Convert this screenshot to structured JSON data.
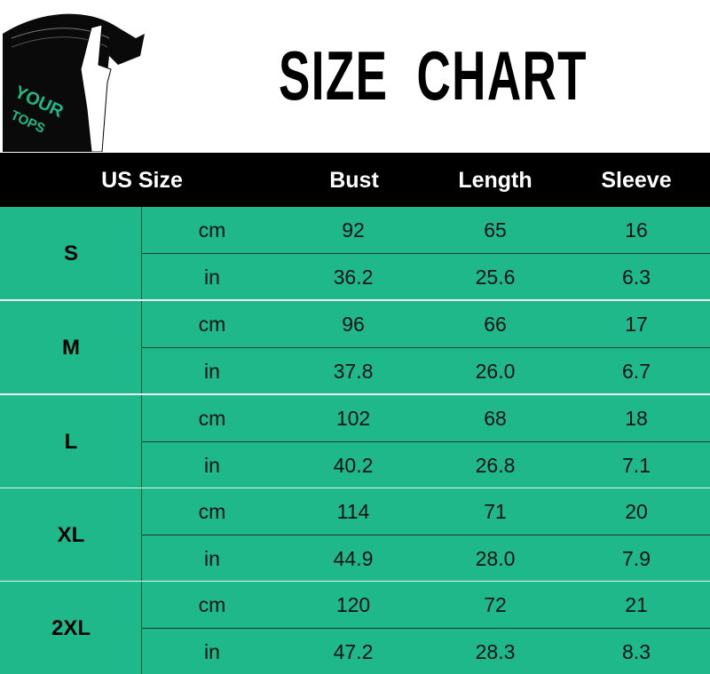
{
  "logo": {
    "text_line1": "YOUR",
    "text_line2": "TOPS",
    "accent": "#1fb88a"
  },
  "title": "SIZE  CHART",
  "header": {
    "size": "US Size",
    "bust": "Bust",
    "length": "Length",
    "sleeve": "Sleeve"
  },
  "colors": {
    "header_bg": "#000000",
    "row_bg": "#1fb88a"
  },
  "rows": [
    {
      "size": "S",
      "cm": {
        "unit": "cm",
        "bust": "92",
        "length": "65",
        "sleeve": "16"
      },
      "in": {
        "unit": "in",
        "bust": "36.2",
        "length": "25.6",
        "sleeve": "6.3"
      }
    },
    {
      "size": "M",
      "cm": {
        "unit": "cm",
        "bust": "96",
        "length": "66",
        "sleeve": "17"
      },
      "in": {
        "unit": "in",
        "bust": "37.8",
        "length": "26.0",
        "sleeve": "6.7"
      }
    },
    {
      "size": "L",
      "cm": {
        "unit": "cm",
        "bust": "102",
        "length": "68",
        "sleeve": "18"
      },
      "in": {
        "unit": "in",
        "bust": "40.2",
        "length": "26.8",
        "sleeve": "7.1"
      }
    },
    {
      "size": "XL",
      "cm": {
        "unit": "cm",
        "bust": "114",
        "length": "71",
        "sleeve": "20"
      },
      "in": {
        "unit": "in",
        "bust": "44.9",
        "length": "28.0",
        "sleeve": "7.9"
      }
    },
    {
      "size": "2XL",
      "cm": {
        "unit": "cm",
        "bust": "120",
        "length": "72",
        "sleeve": "21"
      },
      "in": {
        "unit": "in",
        "bust": "47.2",
        "length": "28.3",
        "sleeve": "8.3"
      }
    }
  ]
}
